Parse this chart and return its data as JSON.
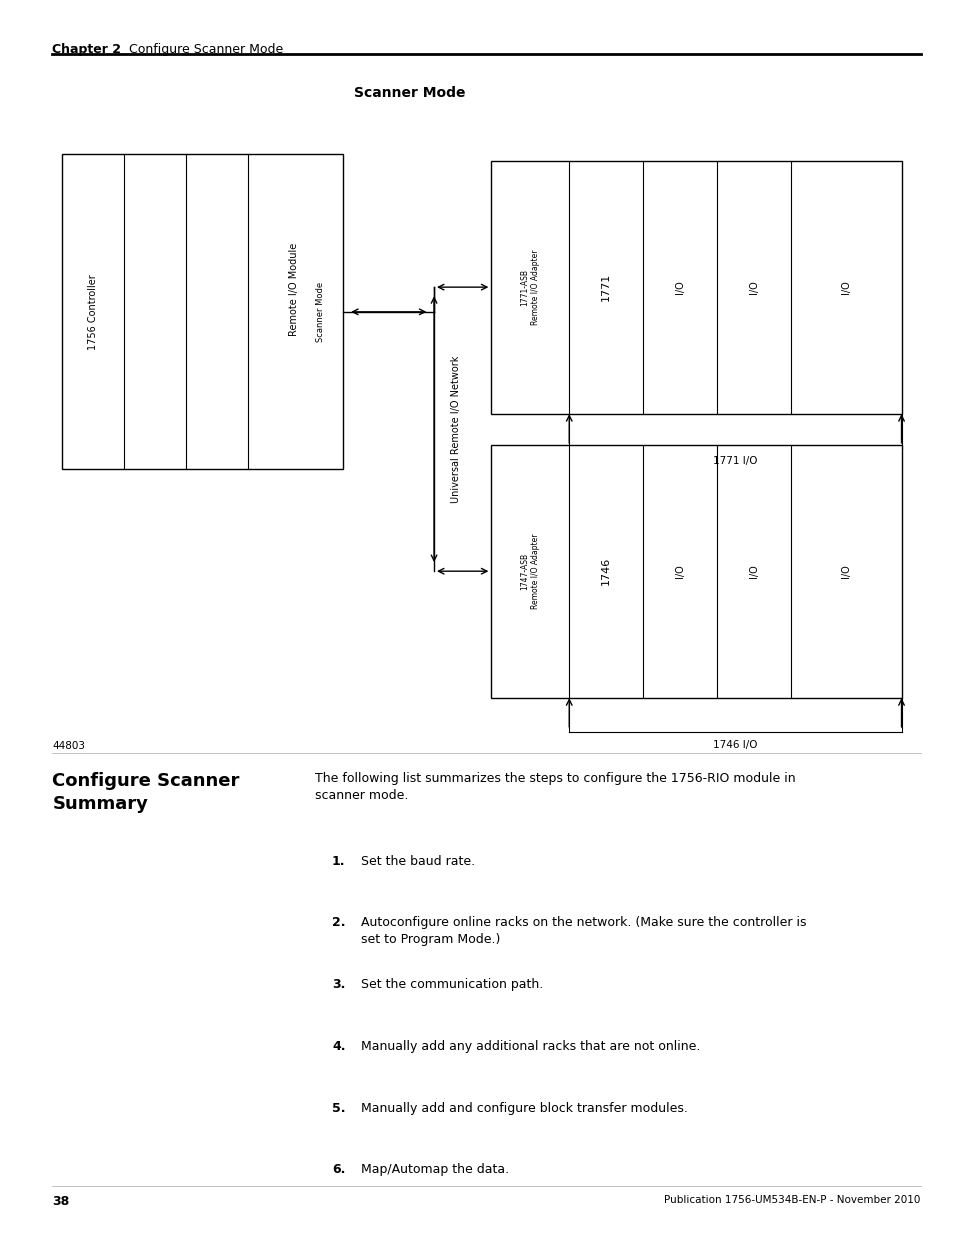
{
  "page_width": 9.54,
  "page_height": 12.35,
  "background_color": "#ffffff",
  "header_chapter": "Chapter 2",
  "header_title": "Configure Scanner Mode",
  "diagram_title": "Scanner Mode",
  "left_box_label1": "1756 Controller",
  "left_box_label2": "Remote I/O Module",
  "left_box_label3": "Scanner Mode",
  "network_label": "Universal Remote I/O Network",
  "rack1_adapter_label": "1771-ASB\nRemote I/O Adapter",
  "rack1_module_label": "1771",
  "rack1_io_labels": [
    "I/O",
    "I/O",
    "I/O"
  ],
  "rack1_io_label_bottom": "1771 I/O",
  "rack2_adapter_label": "1747-ASB\nRemote I/O Adapter",
  "rack2_module_label": "1746",
  "rack2_io_labels": [
    "I/O",
    "I/O",
    "I/O"
  ],
  "rack2_io_label_bottom": "1746 I/O",
  "footer_page": "38",
  "footer_pub": "Publication 1756-UM534B-EN-P - November 2010",
  "figure_label": "44803",
  "section_title": "Configure Scanner\nSummary",
  "section_body": "The following list summarizes the steps to configure the 1756-RIO module in\nscanner mode.",
  "steps": [
    "Set the baud rate.",
    "Autoconfigure online racks on the network. (Make sure the controller is\nset to Program Mode.)",
    "Set the communication path.",
    "Manually add any additional racks that are not online.",
    "Manually add and configure block transfer modules.",
    "Map/Automap the data."
  ]
}
